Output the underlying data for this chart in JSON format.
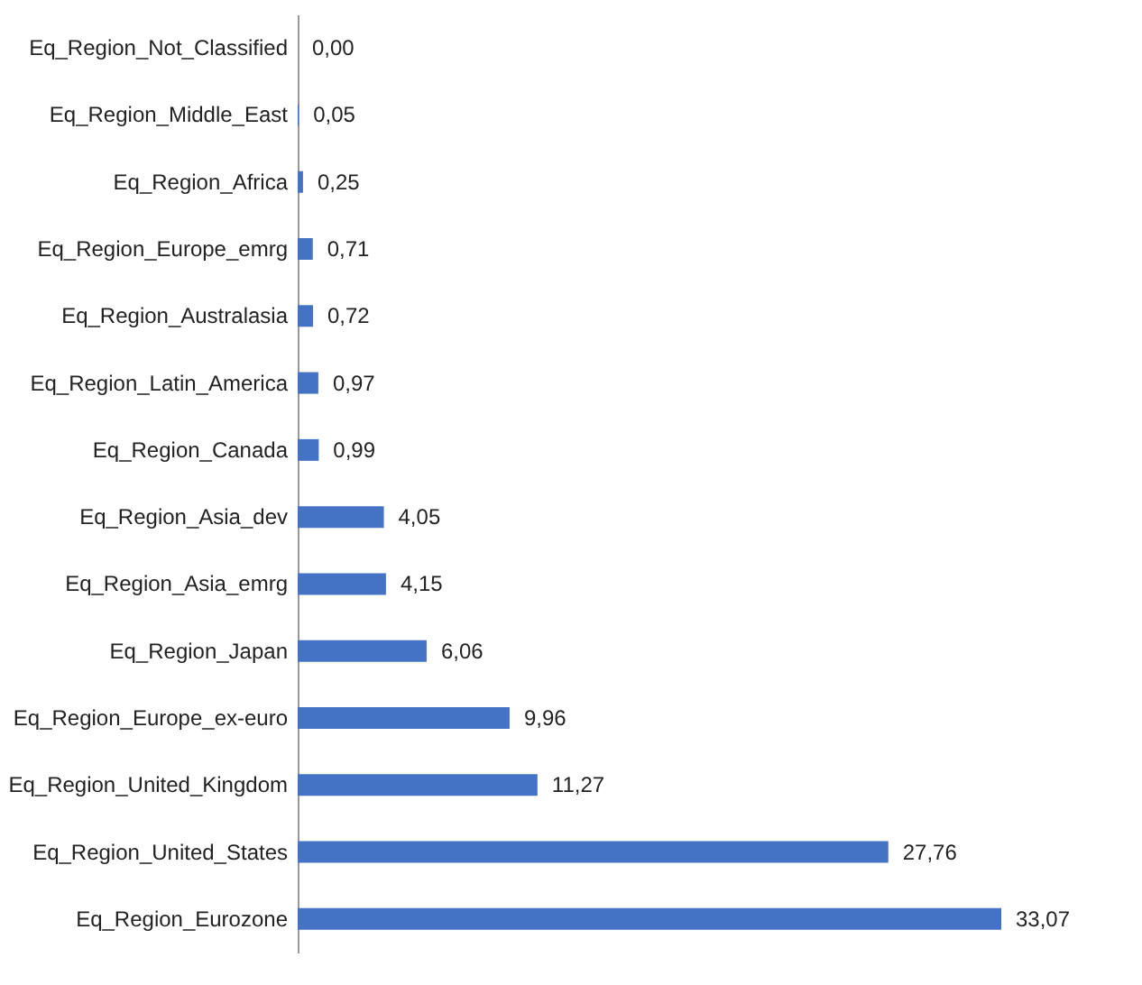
{
  "chart_data": {
    "type": "bar",
    "orientation": "horizontal",
    "categories": [
      "Eq_Region_Not_Classified",
      "Eq_Region_Middle_East",
      "Eq_Region_Africa",
      "Eq_Region_Europe_emrg",
      "Eq_Region_Australasia",
      "Eq_Region_Latin_America",
      "Eq_Region_Canada",
      "Eq_Region_Asia_dev",
      "Eq_Region_Asia_emrg",
      "Eq_Region_Japan",
      "Eq_Region_Europe_ex-euro",
      "Eq_Region_United_Kingdom",
      "Eq_Region_United_States",
      "Eq_Region_Eurozone"
    ],
    "values": [
      0.0,
      0.05,
      0.25,
      0.71,
      0.72,
      0.97,
      0.99,
      4.05,
      4.15,
      6.06,
      9.96,
      11.27,
      27.76,
      33.07
    ],
    "value_labels": [
      "0,00",
      "0,05",
      "0,25",
      "0,71",
      "0,72",
      "0,97",
      "0,99",
      "4,05",
      "4,15",
      "6,06",
      "9,96",
      "11,27",
      "27,76",
      "33,07"
    ],
    "color": "#4472c4"
  }
}
